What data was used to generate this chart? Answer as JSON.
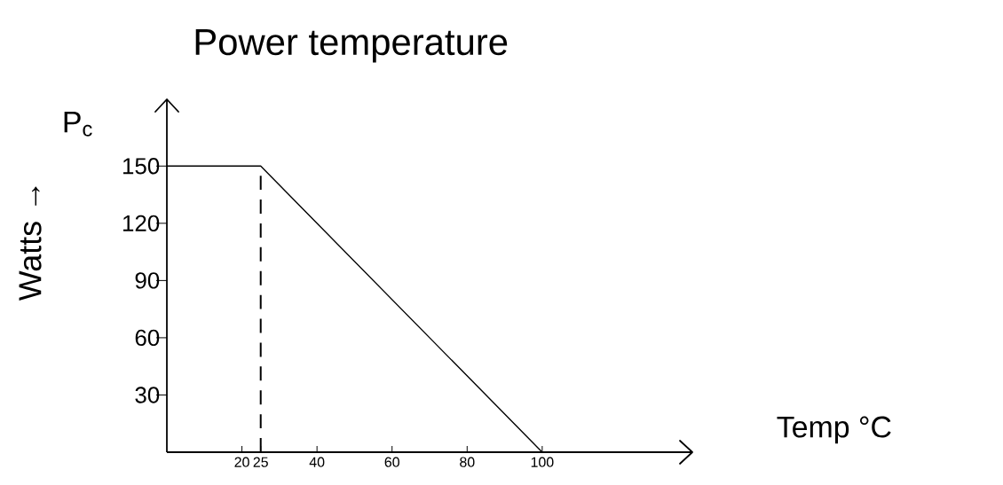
{
  "chart_data": {
    "type": "line",
    "title": "Power temperature",
    "xlabel": "Temp °C",
    "ylabel": "Watts →",
    "annotations": [
      "P$_{c}$"
    ],
    "x": [
      0,
      25,
      100
    ],
    "series": [
      {
        "color": "#000000",
        "values": [
          150,
          150,
          0
        ]
      }
    ],
    "ref_lines": [
      {
        "axis": "x",
        "value": 25,
        "color": "#000000",
        "line_style": "dashed"
      }
    ],
    "xlim": [
      0,
      140
    ],
    "ylim": [
      0,
      185
    ],
    "xticks": [
      20,
      25,
      40,
      60,
      80,
      100
    ],
    "yticks": [
      30,
      60,
      90,
      120,
      150
    ],
    "grid": false,
    "legend": false,
    "marker": "none",
    "line_style": "solid"
  }
}
